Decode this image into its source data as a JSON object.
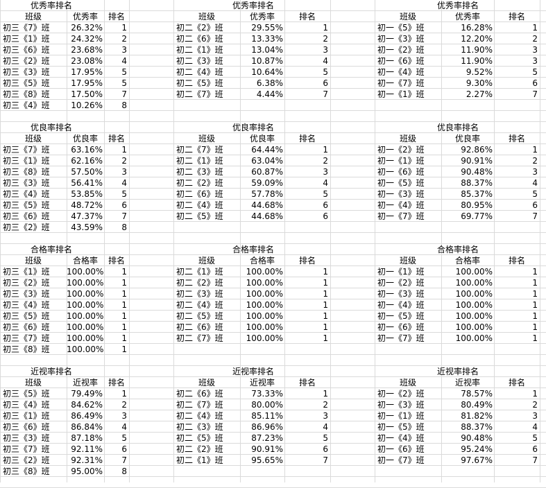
{
  "sections": [
    {
      "blocks": [
        {
          "title": "优秀率排名",
          "headers": [
            "班级",
            "优秀率",
            "排名"
          ],
          "rows": [
            [
              "初三《7》班",
              "26.32%",
              "1"
            ],
            [
              "初三《1》班",
              "24.32%",
              "2"
            ],
            [
              "初三《6》班",
              "23.68%",
              "3"
            ],
            [
              "初三《2》班",
              "23.08%",
              "4"
            ],
            [
              "初三《3》班",
              "17.95%",
              "5"
            ],
            [
              "初三《5》班",
              "17.95%",
              "5"
            ],
            [
              "初三《8》班",
              "17.50%",
              "7"
            ],
            [
              "初三《4》班",
              "10.26%",
              "8"
            ]
          ]
        },
        {
          "title": "优秀率排名",
          "headers": [
            "班级",
            "优秀率",
            "排名"
          ],
          "rows": [
            [
              "初二《2》班",
              "29.55%",
              "1"
            ],
            [
              "初二《6》班",
              "13.33%",
              "2"
            ],
            [
              "初二《1》班",
              "13.04%",
              "3"
            ],
            [
              "初二《3》班",
              "10.87%",
              "4"
            ],
            [
              "初二《4》班",
              "10.64%",
              "5"
            ],
            [
              "初二《5》班",
              "6.38%",
              "6"
            ],
            [
              "初二《7》班",
              "4.44%",
              "7"
            ]
          ]
        },
        {
          "title": "优秀率排名",
          "headers": [
            "班级",
            "优秀率",
            "排名"
          ],
          "rows": [
            [
              "初一《5》班",
              "16.28%",
              "1"
            ],
            [
              "初一《3》班",
              "12.20%",
              "2"
            ],
            [
              "初一《2》班",
              "11.90%",
              "3"
            ],
            [
              "初一《6》班",
              "11.90%",
              "3"
            ],
            [
              "初一《4》班",
              "9.52%",
              "5"
            ],
            [
              "初一《7》班",
              "9.30%",
              "6"
            ],
            [
              "初一《1》班",
              "2.27%",
              "7"
            ]
          ]
        }
      ]
    },
    {
      "blocks": [
        {
          "title": "优良率排名",
          "headers": [
            "班级",
            "优良率",
            "排名"
          ],
          "rows": [
            [
              "初三《7》班",
              "63.16%",
              "1"
            ],
            [
              "初三《1》班",
              "62.16%",
              "2"
            ],
            [
              "初三《8》班",
              "57.50%",
              "3"
            ],
            [
              "初三《3》班",
              "56.41%",
              "4"
            ],
            [
              "初三《4》班",
              "53.85%",
              "5"
            ],
            [
              "初三《5》班",
              "48.72%",
              "6"
            ],
            [
              "初三《6》班",
              "47.37%",
              "7"
            ],
            [
              "初三《2》班",
              "43.59%",
              "8"
            ]
          ]
        },
        {
          "title": "优良率排名",
          "headers": [
            "班级",
            "优良率",
            "排名"
          ],
          "rows": [
            [
              "初二《7》班",
              "64.44%",
              "1"
            ],
            [
              "初二《1》班",
              "63.04%",
              "2"
            ],
            [
              "初二《3》班",
              "60.87%",
              "3"
            ],
            [
              "初二《2》班",
              "59.09%",
              "4"
            ],
            [
              "初二《6》班",
              "57.78%",
              "5"
            ],
            [
              "初二《4》班",
              "44.68%",
              "6"
            ],
            [
              "初二《5》班",
              "44.68%",
              "6"
            ]
          ]
        },
        {
          "title": "优良率排名",
          "headers": [
            "班级",
            "优良率",
            "排名"
          ],
          "rows": [
            [
              "初一《2》班",
              "92.86%",
              "1"
            ],
            [
              "初一《1》班",
              "90.91%",
              "2"
            ],
            [
              "初一《6》班",
              "90.48%",
              "3"
            ],
            [
              "初一《5》班",
              "88.37%",
              "4"
            ],
            [
              "初一《3》班",
              "85.37%",
              "5"
            ],
            [
              "初一《4》班",
              "80.95%",
              "6"
            ],
            [
              "初一《7》班",
              "69.77%",
              "7"
            ]
          ]
        }
      ]
    },
    {
      "blocks": [
        {
          "title": "合格率排名",
          "headers": [
            "班级",
            "合格率",
            "排名"
          ],
          "rows": [
            [
              "初三《1》班",
              "100.00%",
              "1"
            ],
            [
              "初三《2》班",
              "100.00%",
              "1"
            ],
            [
              "初三《3》班",
              "100.00%",
              "1"
            ],
            [
              "初三《4》班",
              "100.00%",
              "1"
            ],
            [
              "初三《5》班",
              "100.00%",
              "1"
            ],
            [
              "初三《6》班",
              "100.00%",
              "1"
            ],
            [
              "初三《7》班",
              "100.00%",
              "1"
            ],
            [
              "初三《8》班",
              "100.00%",
              "1"
            ]
          ]
        },
        {
          "title": "合格率排名",
          "headers": [
            "班级",
            "合格率",
            "排名"
          ],
          "rows": [
            [
              "初二《1》班",
              "100.00%",
              "1"
            ],
            [
              "初二《2》班",
              "100.00%",
              "1"
            ],
            [
              "初二《3》班",
              "100.00%",
              "1"
            ],
            [
              "初二《4》班",
              "100.00%",
              "1"
            ],
            [
              "初二《5》班",
              "100.00%",
              "1"
            ],
            [
              "初二《6》班",
              "100.00%",
              "1"
            ],
            [
              "初二《7》班",
              "100.00%",
              "1"
            ]
          ]
        },
        {
          "title": "合格率排名",
          "headers": [
            "班级",
            "合格率",
            "排名"
          ],
          "rows": [
            [
              "初一《1》班",
              "100.00%",
              "1"
            ],
            [
              "初一《2》班",
              "100.00%",
              "1"
            ],
            [
              "初一《3》班",
              "100.00%",
              "1"
            ],
            [
              "初一《4》班",
              "100.00%",
              "1"
            ],
            [
              "初一《5》班",
              "100.00%",
              "1"
            ],
            [
              "初一《6》班",
              "100.00%",
              "1"
            ],
            [
              "初一《7》班",
              "100.00%",
              "1"
            ]
          ]
        }
      ]
    },
    {
      "blocks": [
        {
          "title": "近视率排名",
          "headers": [
            "班级",
            "近视率",
            "排名"
          ],
          "rows": [
            [
              "初三《5》班",
              "79.49%",
              "1"
            ],
            [
              "初三《4》班",
              "84.62%",
              "2"
            ],
            [
              "初三《1》班",
              "86.49%",
              "3"
            ],
            [
              "初三《6》班",
              "86.84%",
              "4"
            ],
            [
              "初三《3》班",
              "87.18%",
              "5"
            ],
            [
              "初三《7》班",
              "92.11%",
              "6"
            ],
            [
              "初三《2》班",
              "92.31%",
              "7"
            ],
            [
              "初三《8》班",
              "95.00%",
              "8"
            ]
          ]
        },
        {
          "title": "近视率排名",
          "headers": [
            "班级",
            "近视率",
            "排名"
          ],
          "rows": [
            [
              "初二《6》班",
              "73.33%",
              "1"
            ],
            [
              "初二《7》班",
              "80.00%",
              "2"
            ],
            [
              "初二《4》班",
              "85.11%",
              "3"
            ],
            [
              "初二《3》班",
              "86.96%",
              "4"
            ],
            [
              "初二《5》班",
              "87.23%",
              "5"
            ],
            [
              "初二《2》班",
              "90.91%",
              "6"
            ],
            [
              "初二《1》班",
              "95.65%",
              "7"
            ]
          ]
        },
        {
          "title": "近视率排名",
          "headers": [
            "班级",
            "近视率",
            "排名"
          ],
          "rows": [
            [
              "初一《2》班",
              "78.57%",
              "1"
            ],
            [
              "初一《3》班",
              "80.49%",
              "2"
            ],
            [
              "初一《1》班",
              "81.82%",
              "3"
            ],
            [
              "初一《5》班",
              "88.37%",
              "4"
            ],
            [
              "初一《4》班",
              "90.48%",
              "5"
            ],
            [
              "初一《6》班",
              "95.24%",
              "6"
            ],
            [
              "初一《7》班",
              "97.67%",
              "7"
            ]
          ]
        }
      ]
    }
  ]
}
